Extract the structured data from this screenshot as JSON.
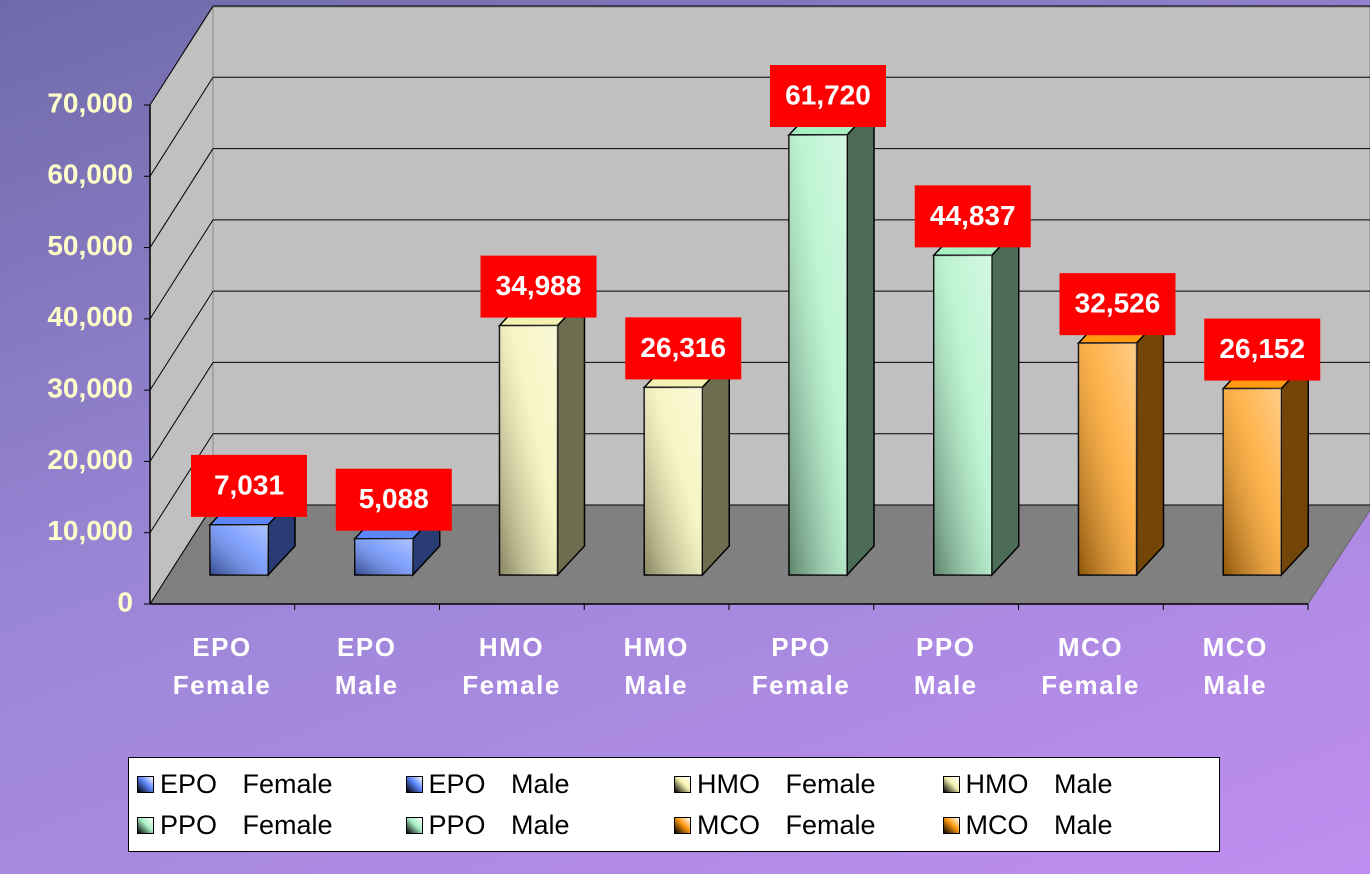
{
  "chart_data": {
    "type": "bar",
    "categories": [
      "EPO Female",
      "EPO Male",
      "HMO Female",
      "HMO Male",
      "PPO Female",
      "PPO Male",
      "MCO Female",
      "MCO Male"
    ],
    "values": [
      7031,
      5088,
      34988,
      26316,
      61720,
      44837,
      32526,
      26152
    ],
    "value_labels": [
      "7,031",
      "5,088",
      "34,988",
      "26,316",
      "61,720",
      "44,837",
      "32,526",
      "26,152"
    ],
    "colors": [
      "#5c86ff",
      "#5c86ff",
      "#f4f2b0",
      "#f4f2b0",
      "#a8f0c4",
      "#a8f0c4",
      "#ff9a10",
      "#ff9a10"
    ],
    "ylim": [
      0,
      70000
    ],
    "yticks": [
      0,
      {
        "value": 10000,
        "label": "10,000"
      },
      {
        "value": 20000,
        "label": "20,000"
      },
      {
        "value": 30000,
        "label": "30,000"
      },
      {
        "value": 40000,
        "label": "40,000"
      },
      {
        "value": 50000,
        "label": "50,000"
      },
      {
        "value": 60000,
        "label": "60,000"
      },
      {
        "value": 70000,
        "label": "70,000"
      }
    ],
    "grid": true
  }
}
